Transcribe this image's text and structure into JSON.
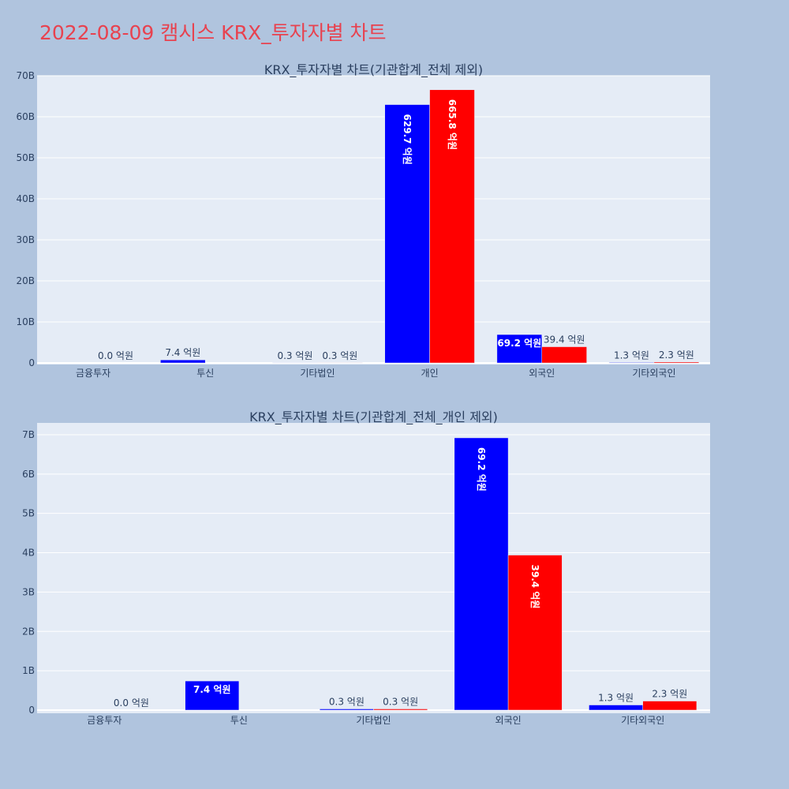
{
  "page": {
    "title": "2022-08-09 캠시스 KRX_투자자별 차트"
  },
  "colors": {
    "page_background": "#b0c4de",
    "plot_background": "#e5ecf6",
    "gridline": "#ffffff",
    "title": "#e8424f",
    "text": "#2a3f5f",
    "series_a": "#0000ff",
    "series_b": "#ff0000"
  },
  "chart_data": [
    {
      "type": "bar",
      "title": "KRX_투자자별 차트(기관합계_전체 제외)",
      "xlabel": "",
      "ylabel": "",
      "categories": [
        "금융투자",
        "투신",
        "기타법인",
        "개인",
        "외국인",
        "기타외국인"
      ],
      "series": [
        {
          "color": "#0000ff",
          "values": [
            0,
            740000000,
            30000000,
            62970000000,
            6920000000,
            130000000
          ],
          "labels": [
            "",
            "7.4 억원",
            "0.3 억원",
            "629.7 억원",
            "69.2 억원",
            "1.3 억원"
          ]
        },
        {
          "color": "#ff0000",
          "values": [
            0,
            0,
            30000000,
            66580000000,
            3940000000,
            230000000
          ],
          "labels": [
            "0.0 억원",
            "",
            "0.3 억원",
            "665.8 억원",
            "39.4 억원",
            "2.3 억원"
          ]
        }
      ],
      "ylim": [
        0,
        70000000000
      ],
      "yticks": [
        0,
        10000000000,
        20000000000,
        30000000000,
        40000000000,
        50000000000,
        60000000000,
        70000000000
      ],
      "ytick_labels": [
        "0",
        "10B",
        "20B",
        "30B",
        "40B",
        "50B",
        "60B",
        "70B"
      ],
      "grid": true,
      "legend": "none"
    },
    {
      "type": "bar",
      "title": "KRX_투자자별 차트(기관합계_전체_개인 제외)",
      "xlabel": "",
      "ylabel": "",
      "categories": [
        "금융투자",
        "투신",
        "기타법인",
        "외국인",
        "기타외국인"
      ],
      "series": [
        {
          "color": "#0000ff",
          "values": [
            0,
            740000000,
            30000000,
            6920000000,
            130000000
          ],
          "labels": [
            "",
            "7.4 억원",
            "0.3 억원",
            "69.2 억원",
            "1.3 억원"
          ]
        },
        {
          "color": "#ff0000",
          "values": [
            0,
            0,
            30000000,
            3940000000,
            230000000
          ],
          "labels": [
            "0.0 억원",
            "",
            "0.3 억원",
            "39.4 억원",
            "2.3 억원"
          ]
        }
      ],
      "ylim": [
        0,
        7300000000
      ],
      "yticks": [
        0,
        1000000000,
        2000000000,
        3000000000,
        4000000000,
        5000000000,
        6000000000,
        7000000000
      ],
      "ytick_labels": [
        "0",
        "1B",
        "2B",
        "3B",
        "4B",
        "5B",
        "6B",
        "7B"
      ],
      "grid": true,
      "legend": "none"
    }
  ]
}
